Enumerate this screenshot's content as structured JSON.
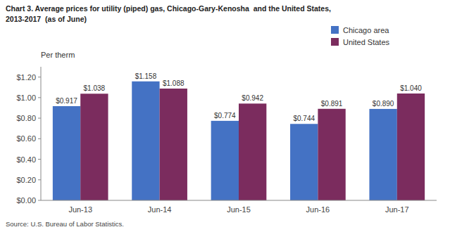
{
  "chart_data": {
    "type": "bar",
    "title": "Chart 3. Average prices for utility (piped) gas, Chicago-Gary-Kenosha  and the United States,",
    "subtitle": "2013-2017  (as of June)",
    "y_label": "Per therm",
    "annotations": [
      "Source: U.S. Bureau of Labor Statistics."
    ],
    "categories": [
      "Jun-13",
      "Jun-14",
      "Jun-15",
      "Jun-16",
      "Jun-17"
    ],
    "series": [
      {
        "name": "Chicago area",
        "color": "#4472C4",
        "values": [
          0.917,
          1.158,
          0.774,
          0.744,
          0.89
        ],
        "value_labels": [
          "$0.917",
          "$1.158",
          "$0.774",
          "$0.744",
          "$0.890"
        ]
      },
      {
        "name": "United States",
        "color": "#7B2C5E",
        "values": [
          1.038,
          1.088,
          0.942,
          0.891,
          1.04
        ],
        "value_labels": [
          "$1.038",
          "$1.088",
          "$0.942",
          "$0.891",
          "$1.040"
        ]
      }
    ],
    "ylim": [
      0,
      1.3
    ],
    "yticks": [
      {
        "value": 0.0,
        "label": "$0.00"
      },
      {
        "value": 0.2,
        "label": "$0.20"
      },
      {
        "value": 0.4,
        "label": "$0.40"
      },
      {
        "value": 0.6,
        "label": "$0.60"
      },
      {
        "value": 0.8,
        "label": "$0.80"
      },
      {
        "value": 1.0,
        "label": "$1.00"
      },
      {
        "value": 1.2,
        "label": "$1.20"
      }
    ],
    "grid": false,
    "legend": "top-right",
    "data_labels": true
  }
}
